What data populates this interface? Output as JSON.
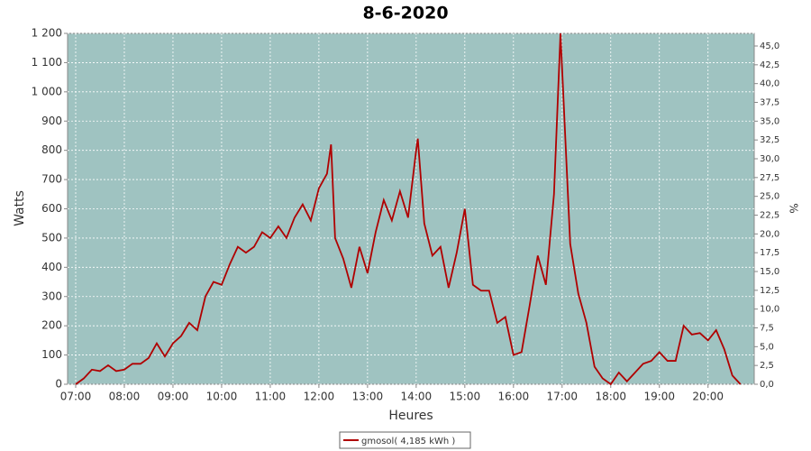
{
  "chart_data": {
    "type": "line",
    "title": "8-6-2020",
    "xlabel": "Heures",
    "ylabel": "Watts",
    "y2label": "%",
    "x": [
      "07:00",
      "07:10",
      "07:20",
      "07:30",
      "07:40",
      "07:50",
      "08:00",
      "08:10",
      "08:20",
      "08:30",
      "08:40",
      "08:50",
      "09:00",
      "09:10",
      "09:20",
      "09:30",
      "09:40",
      "09:50",
      "10:00",
      "10:10",
      "10:20",
      "10:30",
      "10:40",
      "10:50",
      "11:00",
      "11:10",
      "11:20",
      "11:30",
      "11:40",
      "11:50",
      "12:00",
      "12:10",
      "12:15",
      "12:20",
      "12:30",
      "12:40",
      "12:50",
      "13:00",
      "13:10",
      "13:20",
      "13:30",
      "13:40",
      "13:50",
      "14:00",
      "14:02",
      "14:10",
      "14:20",
      "14:30",
      "14:40",
      "14:50",
      "15:00",
      "15:10",
      "15:20",
      "15:30",
      "15:40",
      "15:50",
      "16:00",
      "16:10",
      "16:20",
      "16:30",
      "16:40",
      "16:50",
      "16:58",
      "17:10",
      "17:20",
      "17:30",
      "17:40",
      "17:50",
      "18:00",
      "18:10",
      "18:20",
      "18:30",
      "18:40",
      "18:50",
      "19:00",
      "19:10",
      "19:20",
      "19:30",
      "19:40",
      "19:50",
      "20:00",
      "20:10",
      "20:20",
      "20:30",
      "20:40"
    ],
    "series": [
      {
        "name": "gmosol( 4,185 kWh )",
        "color": "#b00000",
        "values": [
          0,
          20,
          50,
          45,
          65,
          45,
          50,
          70,
          70,
          90,
          140,
          95,
          140,
          165,
          210,
          185,
          300,
          350,
          340,
          410,
          470,
          450,
          470,
          520,
          500,
          540,
          500,
          570,
          615,
          560,
          670,
          720,
          820,
          500,
          430,
          330,
          470,
          380,
          520,
          630,
          560,
          660,
          570,
          800,
          840,
          550,
          440,
          470,
          330,
          450,
          600,
          340,
          320,
          320,
          210,
          230,
          100,
          110,
          270,
          440,
          340,
          650,
          1200,
          480,
          310,
          210,
          60,
          20,
          0,
          40,
          10,
          40,
          70,
          80,
          110,
          80,
          80,
          200,
          170,
          175,
          150,
          185,
          120,
          30,
          0
        ]
      }
    ],
    "xlim": [
      "06:50",
      "20:57"
    ],
    "xticks": [
      "07:00",
      "08:00",
      "09:00",
      "10:00",
      "11:00",
      "12:00",
      "13:00",
      "14:00",
      "15:00",
      "16:00",
      "17:00",
      "18:00",
      "19:00",
      "20:00"
    ],
    "ylim": [
      0,
      1200
    ],
    "yticks": [
      0,
      100,
      200,
      300,
      400,
      500,
      600,
      700,
      800,
      900,
      {
        "value": 1000,
        "label": "1 000"
      },
      {
        "value": 1100,
        "label": "1 100"
      },
      {
        "value": 1200,
        "label": "1 200"
      }
    ],
    "y2lim": [
      0,
      46.68
    ],
    "y2ticks": [
      {
        "value": 0,
        "label": "0,0"
      },
      {
        "value": 2.5,
        "label": "2,5"
      },
      {
        "value": 5,
        "label": "5,0"
      },
      {
        "value": 7.5,
        "label": "7,5"
      },
      {
        "value": 10,
        "label": "10,0"
      },
      {
        "value": 12.5,
        "label": "12,5"
      },
      {
        "value": 15,
        "label": "15,0"
      },
      {
        "value": 17.5,
        "label": "17,5"
      },
      {
        "value": 20,
        "label": "20,0"
      },
      {
        "value": 22.5,
        "label": "22,5"
      },
      {
        "value": 25,
        "label": "25,0"
      },
      {
        "value": 27.5,
        "label": "27,5"
      },
      {
        "value": 30,
        "label": "30,0"
      },
      {
        "value": 32.5,
        "label": "32,5"
      },
      {
        "value": 35,
        "label": "35,0"
      },
      {
        "value": 37.5,
        "label": "37,5"
      },
      {
        "value": 40,
        "label": "40,0"
      },
      {
        "value": 42.5,
        "label": "42,5"
      },
      {
        "value": 45,
        "label": "45,0"
      }
    ],
    "grid": true,
    "legend": "bottom"
  }
}
